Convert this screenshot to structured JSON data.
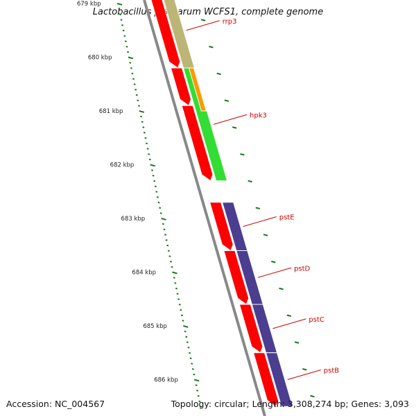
{
  "title": "Lactobacillus plantarum WCFS1, complete genome",
  "footer": {
    "accession": "Accession: NC_004567",
    "topology": "Topology: circular; Length: 3,308,274 bp; Genes: 3,093"
  },
  "ruler": {
    "ticks": [
      "679 kbp",
      "680 kbp",
      "681 kbp",
      "682 kbp",
      "683 kbp",
      "684 kbp",
      "685 kbp",
      "686 kbp"
    ]
  },
  "colors": {
    "cds": "#ff0000",
    "rrp3": "#bdb576",
    "hpk3": "#33dd33",
    "orange_feature": "#ff9900",
    "pst_operon": "#4b3d8f",
    "backbone": "#888888",
    "tick": "#1a7a1a",
    "label_line": "#cc0000"
  },
  "genes": [
    {
      "name": "rrp3",
      "start_kbp": 678.8,
      "end_kbp": 680.2
    },
    {
      "name": "hpk3",
      "start_kbp": 680.2,
      "end_kbp": 682.3
    },
    {
      "name": "pstE",
      "start_kbp": 682.7,
      "end_kbp": 683.6
    },
    {
      "name": "pstD",
      "start_kbp": 683.6,
      "end_kbp": 684.6
    },
    {
      "name": "pstC",
      "start_kbp": 684.6,
      "end_kbp": 685.5
    },
    {
      "name": "pstB",
      "start_kbp": 685.5,
      "end_kbp": 686.5
    }
  ],
  "cds": [
    {
      "start_kbp": 678.8,
      "end_kbp": 680.2
    },
    {
      "start_kbp": 680.2,
      "end_kbp": 680.9
    },
    {
      "start_kbp": 680.9,
      "end_kbp": 682.3
    },
    {
      "start_kbp": 682.7,
      "end_kbp": 683.6
    },
    {
      "start_kbp": 683.6,
      "end_kbp": 684.6
    },
    {
      "start_kbp": 684.6,
      "end_kbp": 685.5
    },
    {
      "start_kbp": 685.5,
      "end_kbp": 686.5
    }
  ]
}
